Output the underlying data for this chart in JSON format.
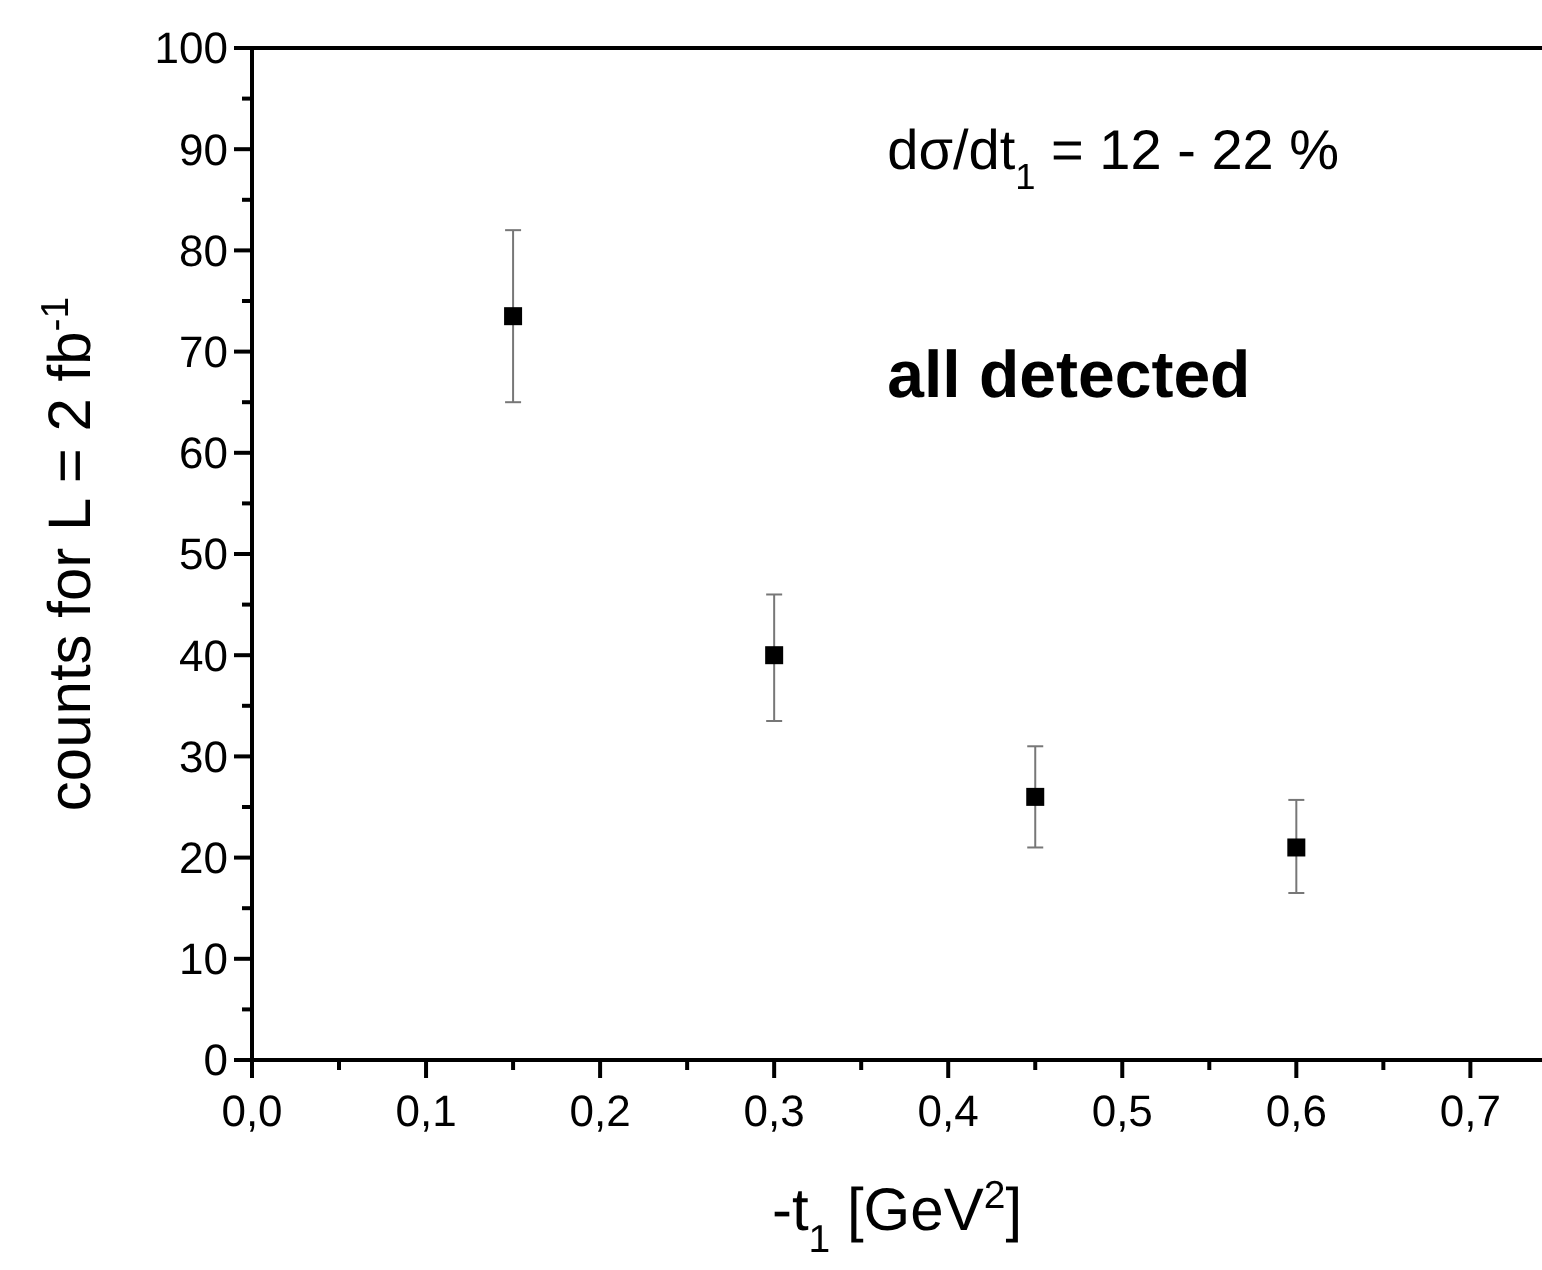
{
  "chart_data": {
    "type": "scatter",
    "xlabel": "-t$_{1}$ [GeV$^{2}$]",
    "ylabel": "counts for L = 2 fb$^{-1}$",
    "annotations": [
      "dσ/dt$_{1}$ = 12 - 22 %",
      "all detected"
    ],
    "x": [
      0.15,
      0.3,
      0.45,
      0.6
    ],
    "series": [
      {
        "color": "#000000",
        "values": [
          73.5,
          40,
          26,
          21
        ],
        "errors": [
          [
            65,
            82
          ],
          [
            33.5,
            46
          ],
          [
            21,
            31
          ],
          [
            16.5,
            25.7
          ]
        ]
      }
    ],
    "marker": "square",
    "grid": false,
    "xlim": [
      0,
      0.74
    ],
    "ylim": [
      0,
      100
    ],
    "xticks": [
      {
        "value": 0,
        "label": "0,0"
      },
      {
        "value": 0.05,
        "label": null
      },
      {
        "value": 0.1,
        "label": "0,1"
      },
      {
        "value": 0.15,
        "label": null
      },
      {
        "value": 0.2,
        "label": "0,2"
      },
      {
        "value": 0.25,
        "label": null
      },
      {
        "value": 0.3,
        "label": "0,3"
      },
      {
        "value": 0.35,
        "label": null
      },
      {
        "value": 0.4,
        "label": "0,4"
      },
      {
        "value": 0.45,
        "label": null
      },
      {
        "value": 0.5,
        "label": "0,5"
      },
      {
        "value": 0.55,
        "label": null
      },
      {
        "value": 0.6,
        "label": "0,6"
      },
      {
        "value": 0.65,
        "label": null
      },
      {
        "value": 0.7,
        "label": "0,7"
      }
    ],
    "yticks": [
      0,
      {
        "value": 5,
        "label": null
      },
      10,
      {
        "value": 15,
        "label": null
      },
      20,
      {
        "value": 25,
        "label": null
      },
      30,
      {
        "value": 35,
        "label": null
      },
      40,
      {
        "value": 45,
        "label": null
      },
      50,
      {
        "value": 55,
        "label": null
      },
      60,
      {
        "value": 65,
        "label": null
      },
      70,
      {
        "value": 75,
        "label": null
      },
      80,
      {
        "value": 85,
        "label": null
      },
      90,
      {
        "value": 95,
        "label": null
      },
      100
    ]
  }
}
